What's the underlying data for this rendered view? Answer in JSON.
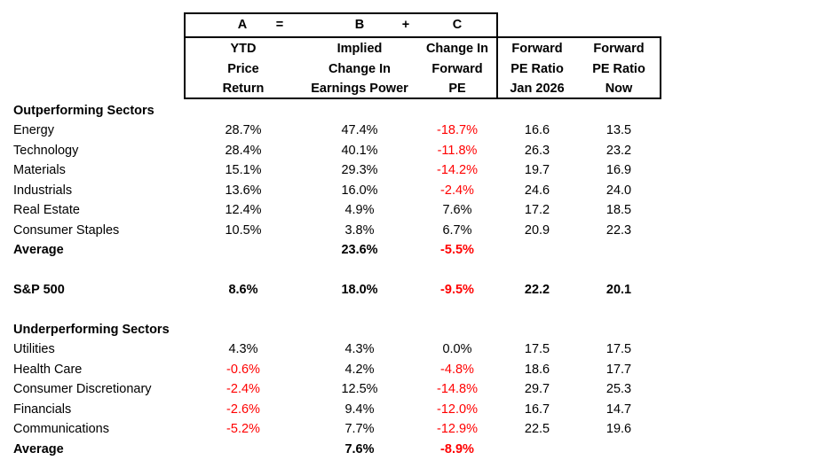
{
  "top_header": {
    "a": "A",
    "eq": "=",
    "b": "B",
    "plus": "+",
    "c": "C"
  },
  "columns": [
    [
      "YTD",
      "Price",
      "Return"
    ],
    [
      "Implied",
      "Change In",
      "Earnings Power"
    ],
    [
      "Change In",
      "Forward",
      "PE"
    ],
    [
      "Forward",
      "PE Ratio",
      "Jan 2026"
    ],
    [
      "Forward",
      "PE Ratio",
      "Now"
    ]
  ],
  "sections": {
    "outperforming_title": "Outperforming Sectors",
    "underperforming_title": "Underperforming Sectors"
  },
  "outperforming": [
    {
      "name": "Energy",
      "ytd": "28.7%",
      "earnings": "47.4%",
      "pe_change": "-18.7%",
      "pe_jan": "16.6",
      "pe_now": "13.5"
    },
    {
      "name": "Technology",
      "ytd": "28.4%",
      "earnings": "40.1%",
      "pe_change": "-11.8%",
      "pe_jan": "26.3",
      "pe_now": "23.2"
    },
    {
      "name": "Materials",
      "ytd": "15.1%",
      "earnings": "29.3%",
      "pe_change": "-14.2%",
      "pe_jan": "19.7",
      "pe_now": "16.9"
    },
    {
      "name": "Industrials",
      "ytd": "13.6%",
      "earnings": "16.0%",
      "pe_change": "-2.4%",
      "pe_jan": "24.6",
      "pe_now": "24.0"
    },
    {
      "name": "Real Estate",
      "ytd": "12.4%",
      "earnings": "4.9%",
      "pe_change": "7.6%",
      "pe_jan": "17.2",
      "pe_now": "18.5"
    },
    {
      "name": "Consumer Staples",
      "ytd": "10.5%",
      "earnings": "3.8%",
      "pe_change": "6.7%",
      "pe_jan": "20.9",
      "pe_now": "22.3"
    }
  ],
  "outperforming_average": {
    "name": "Average",
    "earnings": "23.6%",
    "pe_change": "-5.5%"
  },
  "sp500": {
    "name": "S&P 500",
    "ytd": "8.6%",
    "earnings": "18.0%",
    "pe_change": "-9.5%",
    "pe_jan": "22.2",
    "pe_now": "20.1"
  },
  "underperforming": [
    {
      "name": "Utilities",
      "ytd": "4.3%",
      "earnings": "4.3%",
      "pe_change": "0.0%",
      "pe_jan": "17.5",
      "pe_now": "17.5"
    },
    {
      "name": "Health Care",
      "ytd": "-0.6%",
      "earnings": "4.2%",
      "pe_change": "-4.8%",
      "pe_jan": "18.6",
      "pe_now": "17.7"
    },
    {
      "name": "Consumer Discretionary",
      "ytd": "-2.4%",
      "earnings": "12.5%",
      "pe_change": "-14.8%",
      "pe_jan": "29.7",
      "pe_now": "25.3"
    },
    {
      "name": "Financials",
      "ytd": "-2.6%",
      "earnings": "9.4%",
      "pe_change": "-12.0%",
      "pe_jan": "16.7",
      "pe_now": "14.7"
    },
    {
      "name": "Communications",
      "ytd": "-5.2%",
      "earnings": "7.7%",
      "pe_change": "-12.9%",
      "pe_jan": "22.5",
      "pe_now": "19.6"
    }
  ],
  "underperforming_average": {
    "name": "Average",
    "earnings": "7.6%",
    "pe_change": "-8.9%"
  },
  "colors": {
    "negative": "#ff0000",
    "text": "#000000",
    "border": "#000000"
  }
}
